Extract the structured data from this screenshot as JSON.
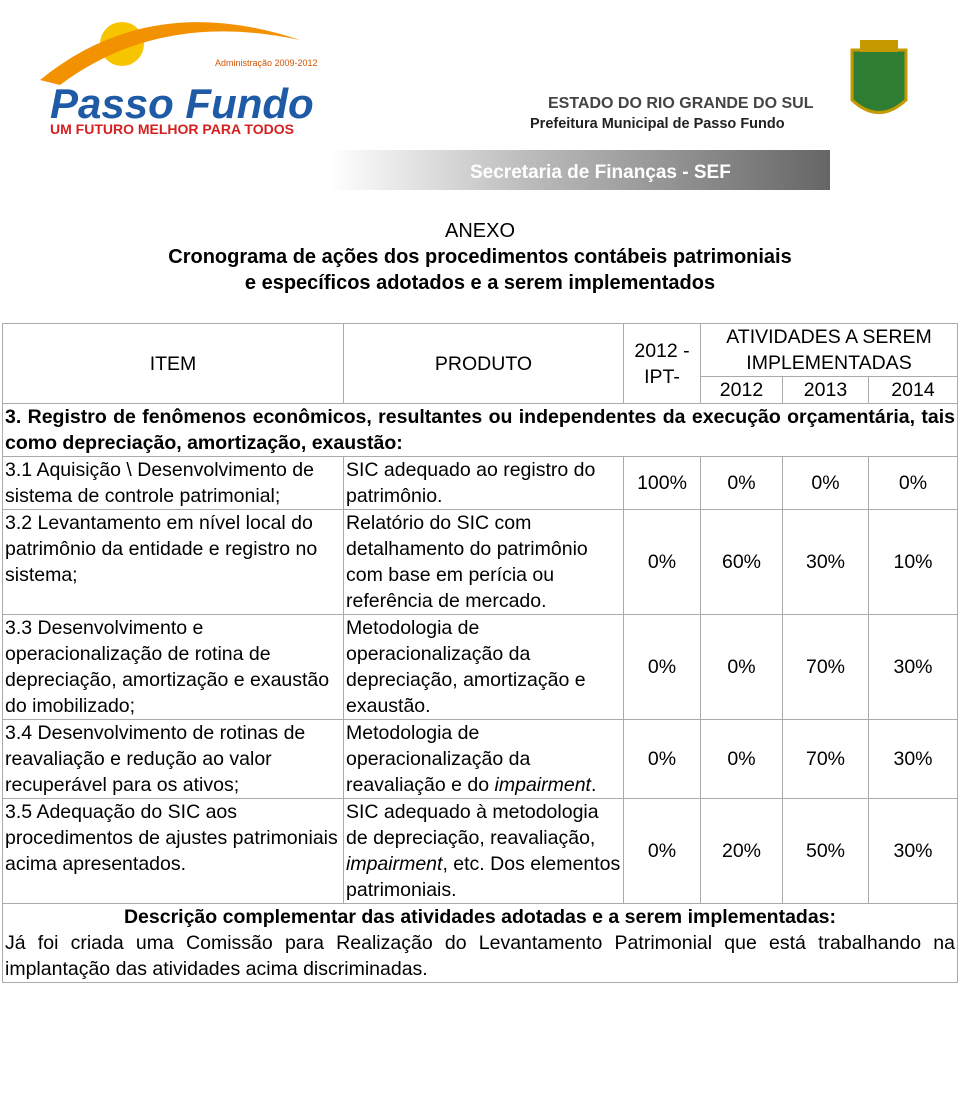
{
  "header": {
    "logo_admin": "Administração 2009-2012",
    "logo_name": "Passo Fundo",
    "logo_slogan": "UM FUTURO MELHOR PARA TODOS",
    "state": "ESTADO DO RIO GRANDE DO SUL",
    "prefeitura": "Prefeitura Municipal de Passo Fundo",
    "secretaria": "Secretaria de Finanças - SEF"
  },
  "title": [
    "ANEXO",
    "Cronograma de ações dos procedimentos contábeis patrimoniais",
    "e específicos adotados e a serem implementados"
  ],
  "table": {
    "head": {
      "item": "ITEM",
      "produto": "PRODUTO",
      "ipt": "2012 -IPT-",
      "atividades": "ATIVIDADES A SEREM IMPLEMENTADAS",
      "years": [
        "2012",
        "2013",
        "2014"
      ]
    },
    "section": "3. Registro de fenômenos econômicos, resultantes ou independentes da execução orçamentária, tais como depreciação, amortização, exaustão:",
    "rows": [
      {
        "item": "3.1 Aquisição \\ Desenvolvimento de sistema de controle patrimonial;",
        "produto": [
          {
            "text": "SIC adequado ao registro do patrimônio."
          }
        ],
        "values": [
          "100%",
          "0%",
          "0%",
          "0%"
        ]
      },
      {
        "item": "3.2 Levantamento em nível local do patrimônio da entidade e registro no sistema;",
        "produto": [
          {
            "text": "Relatório do SIC com detalhamento do patrimônio com base em perícia ou referência de mercado."
          }
        ],
        "values": [
          "0%",
          "60%",
          "30%",
          "10%"
        ]
      },
      {
        "item": "3.3 Desenvolvimento e operacionalização de rotina de depreciação, amortização e exaustão do imobilizado;",
        "produto": [
          {
            "text": "Metodologia de operacionalização da depreciação, amortização e exaustão."
          }
        ],
        "values": [
          "0%",
          "0%",
          "70%",
          "30%"
        ]
      },
      {
        "item": "3.4 Desenvolvimento de rotinas de reavaliação e redução ao valor recuperável para os ativos;",
        "produto": [
          {
            "text": "Metodologia de operacionalização da reavaliação e do "
          },
          {
            "text": "impairment",
            "italic": true
          },
          {
            "text": "."
          }
        ],
        "values": [
          "0%",
          "0%",
          "70%",
          "30%"
        ]
      },
      {
        "item": "3.5 Adequação do SIC aos procedimentos de ajustes patrimoniais acima apresentados.",
        "produto": [
          {
            "text": "SIC adequado à metodologia de depreciação, reavaliação, "
          },
          {
            "text": "impairment",
            "italic": true
          },
          {
            "text": ", etc. Dos elementos patrimoniais."
          }
        ],
        "values": [
          "0%",
          "20%",
          "50%",
          "30%"
        ]
      }
    ],
    "description_title": "Descrição complementar das atividades adotadas e a serem implementadas:",
    "description": "Já foi criada uma Comissão para Realização do Levantamento Patrimonial que está trabalhando na implantação das atividades acima discriminadas."
  }
}
